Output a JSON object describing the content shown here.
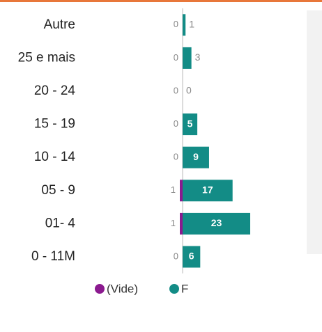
{
  "chart_data": {
    "type": "diverging-bar",
    "categories": [
      "Autre",
      "25 e mais",
      "20 - 24",
      "15 - 19",
      "10 - 14",
      "05 - 9",
      "01- 4",
      "0 - 11M"
    ],
    "series": [
      {
        "name": "(Vide)",
        "color": "#8b1a8f",
        "values": [
          0,
          0,
          0,
          0,
          0,
          1,
          1,
          0
        ]
      },
      {
        "name": "F",
        "color": "#138c86",
        "values": [
          1,
          3,
          0,
          5,
          9,
          17,
          23,
          6
        ]
      }
    ]
  }
}
